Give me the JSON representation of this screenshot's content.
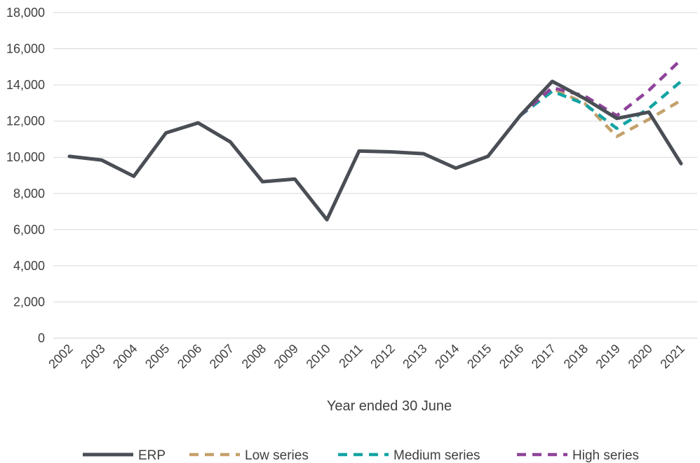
{
  "chart_data": {
    "type": "line",
    "xlabel": "Year ended 30 June",
    "ylabel": "",
    "ylim": [
      0,
      18000
    ],
    "yticks": [
      "0",
      "2,000",
      "4,000",
      "6,000",
      "8,000",
      "10,000",
      "12,000",
      "14,000",
      "16,000",
      "18,000"
    ],
    "ytick_values": [
      0,
      2000,
      4000,
      6000,
      8000,
      10000,
      12000,
      14000,
      16000,
      18000
    ],
    "categories": [
      "2002",
      "2003",
      "2004",
      "2005",
      "2006",
      "2007",
      "2008",
      "2009",
      "2010",
      "2011",
      "2012",
      "2013",
      "2014",
      "2015",
      "2016",
      "2017",
      "2018",
      "2019",
      "2020",
      "2021"
    ],
    "grid": true,
    "legend_position": "bottom",
    "series": [
      {
        "name": "ERP",
        "color": "#4a4e55",
        "dash": false,
        "values": [
          10050,
          9850,
          8950,
          11350,
          11900,
          10850,
          8650,
          8800,
          6550,
          10350,
          10300,
          10200,
          9400,
          10050,
          12300,
          14200,
          13250,
          12150,
          12500,
          9650
        ]
      },
      {
        "name": "Low series",
        "color": "#c4a16b",
        "dash": true,
        "values": [
          null,
          null,
          null,
          null,
          null,
          null,
          null,
          null,
          null,
          null,
          null,
          null,
          null,
          null,
          12300,
          13800,
          13000,
          11150,
          12100,
          13150
        ]
      },
      {
        "name": "Medium series",
        "color": "#14a3a3",
        "dash": true,
        "values": [
          null,
          null,
          null,
          null,
          null,
          null,
          null,
          null,
          null,
          null,
          null,
          null,
          null,
          null,
          12300,
          13650,
          12950,
          11600,
          12700,
          14200
        ]
      },
      {
        "name": "High series",
        "color": "#8e449a",
        "dash": true,
        "values": [
          null,
          null,
          null,
          null,
          null,
          null,
          null,
          null,
          null,
          null,
          null,
          null,
          null,
          null,
          12300,
          13850,
          13400,
          12300,
          13700,
          15400
        ]
      }
    ]
  }
}
